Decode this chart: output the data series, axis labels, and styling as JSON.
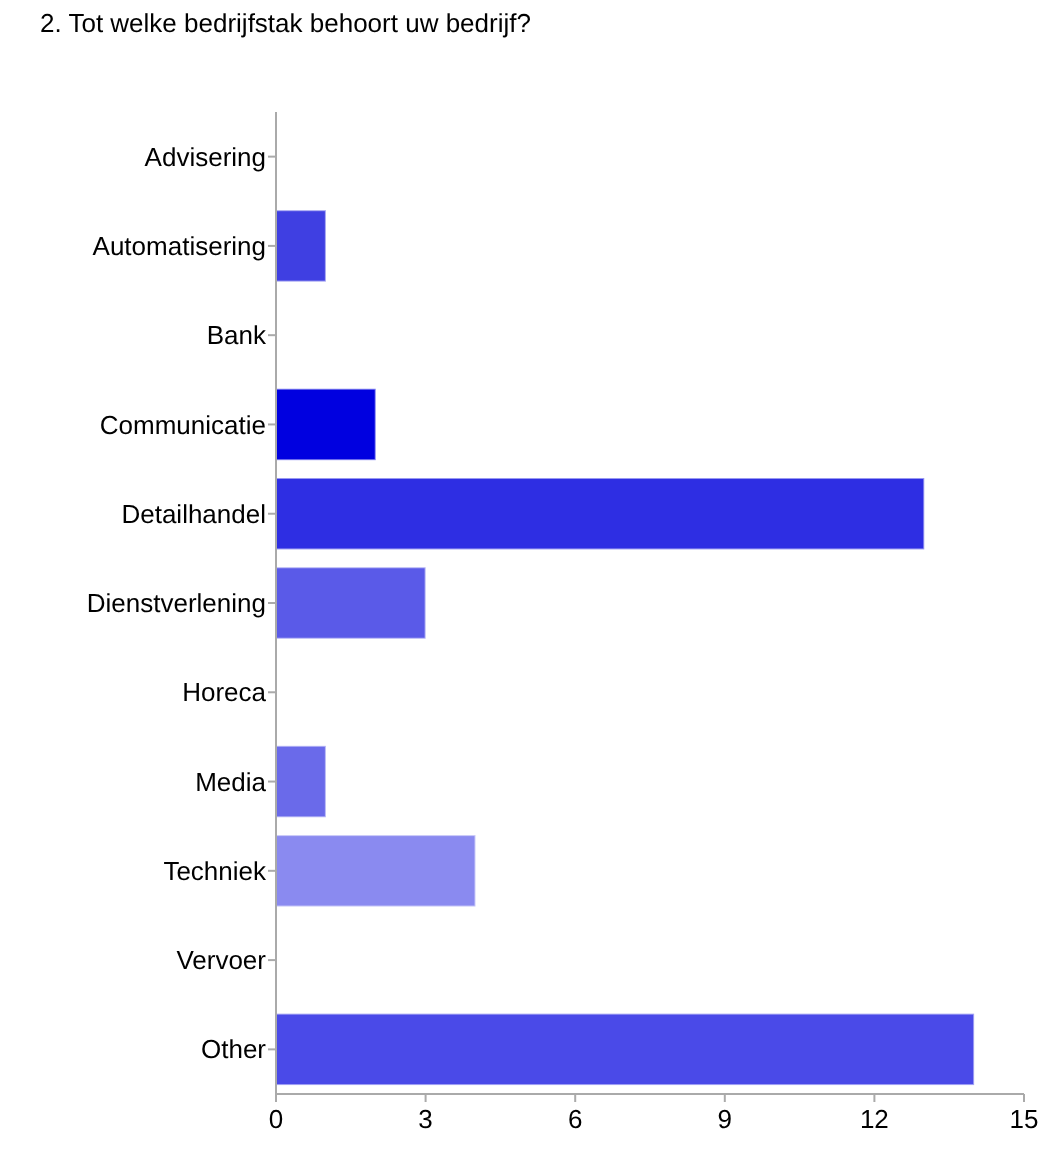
{
  "chart_data": {
    "type": "bar",
    "orientation": "horizontal",
    "title": "2. Tot welke bedrijfstak behoort uw bedrijf?",
    "categories": [
      "Advisering",
      "Automatisering",
      "Bank",
      "Communicatie",
      "Detailhandel",
      "Dienstverlening",
      "Horeca",
      "Media",
      "Techniek",
      "Vervoer",
      "Other"
    ],
    "values": [
      0,
      1,
      0,
      2,
      13,
      3,
      0,
      1,
      4,
      0,
      14
    ],
    "colors": [
      "#4040e0",
      "#3f3fe2",
      "#4040e0",
      "#0000e0",
      "#2e2ee3",
      "#5a5ae8",
      "#4040e0",
      "#6a6aea",
      "#8a8af0",
      "#4040e0",
      "#4a4ae8"
    ],
    "xlim": [
      0,
      15
    ],
    "xticks": [
      0,
      3,
      6,
      9,
      12,
      15
    ],
    "grid": false
  }
}
